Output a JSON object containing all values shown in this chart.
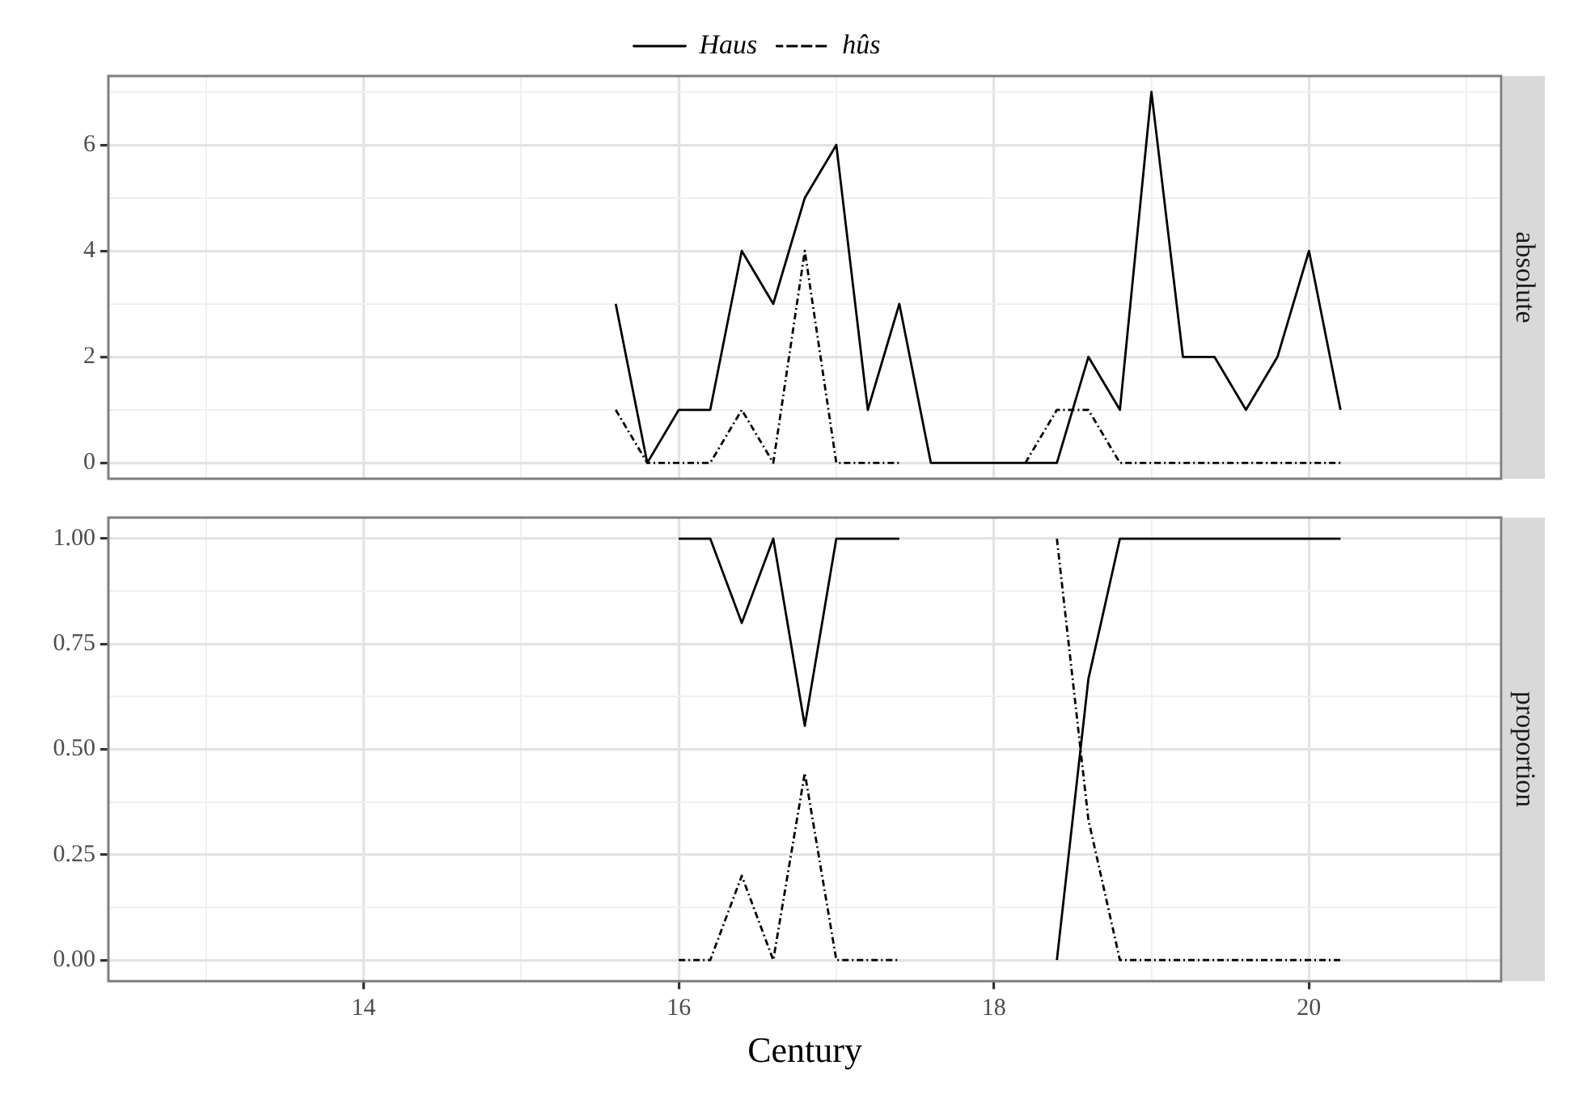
{
  "chart_data": [
    {
      "type": "line",
      "title": "absolute",
      "x": [
        15.6,
        15.8,
        16.0,
        16.2,
        16.4,
        16.6,
        16.8,
        17.0,
        17.2,
        17.4,
        17.6,
        17.8,
        18.0,
        18.2,
        18.4,
        18.6,
        18.8,
        19.0,
        19.2,
        19.4,
        19.6,
        19.8,
        20.0,
        20.2
      ],
      "xlim": [
        12.38,
        21.22
      ],
      "xticks": [
        {
          "value": 13,
          "label": null
        },
        14,
        {
          "value": 15,
          "label": null
        },
        16,
        {
          "value": 17,
          "label": null
        },
        18,
        {
          "value": 19,
          "label": null
        },
        20,
        {
          "value": 21,
          "label": null
        }
      ],
      "ylim": [
        -0.3,
        7.3
      ],
      "yticks": [
        0,
        {
          "value": 1,
          "label": null
        },
        2,
        {
          "value": 3,
          "label": null
        },
        4,
        {
          "value": 5,
          "label": null
        },
        6,
        {
          "value": 7,
          "label": null
        }
      ],
      "grid": true,
      "legend": "top",
      "tick_labels": "y",
      "marker": "none",
      "series": [
        {
          "name": "Haus",
          "color": "#000000",
          "line_style": "solid",
          "values": [
            3,
            0,
            1,
            1,
            4,
            3,
            5,
            6,
            1,
            3,
            0,
            0,
            0,
            0,
            0,
            2,
            1,
            7,
            2,
            2,
            1,
            2,
            4,
            1
          ]
        },
        {
          "name": "hûs",
          "color": "#000000",
          "line_style": "dashdot",
          "values": [
            1,
            0,
            0,
            0,
            1,
            0,
            4,
            0,
            0,
            0,
            null,
            null,
            null,
            0,
            1,
            1,
            0,
            0,
            0,
            0,
            0,
            0,
            0,
            0
          ]
        }
      ]
    },
    {
      "type": "line",
      "title": "proportion",
      "xlabel": "Century",
      "x": [
        16.0,
        16.2,
        16.4,
        16.6,
        16.8,
        17.0,
        17.2,
        17.4,
        17.6,
        17.8,
        18.0,
        18.2,
        18.4,
        18.6,
        18.8,
        19.0,
        19.2,
        19.4,
        19.6,
        19.8,
        20.0,
        20.2
      ],
      "xlim": [
        12.38,
        21.22
      ],
      "xticks": [
        {
          "value": 13,
          "label": null
        },
        14,
        {
          "value": 15,
          "label": null
        },
        16,
        {
          "value": 17,
          "label": null
        },
        18,
        {
          "value": 19,
          "label": null
        },
        20,
        {
          "value": 21,
          "label": null
        }
      ],
      "ylim": [
        -0.05,
        1.05
      ],
      "yticks": [
        {
          "value": 0,
          "label": "0.00"
        },
        {
          "value": 0.125,
          "label": null
        },
        {
          "value": 0.25,
          "label": "0.25"
        },
        {
          "value": 0.375,
          "label": null
        },
        {
          "value": 0.5,
          "label": "0.50"
        },
        {
          "value": 0.625,
          "label": null
        },
        {
          "value": 0.75,
          "label": "0.75"
        },
        {
          "value": 0.875,
          "label": null
        },
        {
          "value": 1,
          "label": "1.00"
        }
      ],
      "grid": true,
      "marker": "none",
      "series": [
        {
          "color": "#000000",
          "line_style": "solid",
          "values": [
            1,
            1,
            0.8,
            1,
            0.556,
            1,
            1,
            1,
            null,
            null,
            null,
            null,
            0,
            0.667,
            1,
            1,
            1,
            1,
            1,
            1,
            1,
            1
          ]
        },
        {
          "color": "#000000",
          "line_style": "dashdot",
          "values": [
            0,
            0,
            0.2,
            0,
            0.444,
            0,
            0,
            0,
            null,
            null,
            null,
            null,
            1,
            0.333,
            0,
            0,
            0,
            0,
            0,
            0,
            0,
            0
          ]
        }
      ]
    }
  ]
}
